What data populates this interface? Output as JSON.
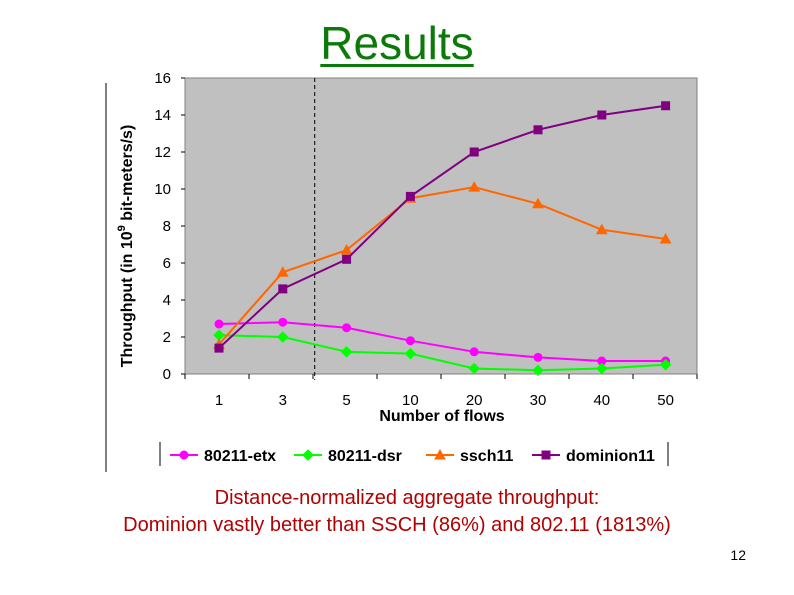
{
  "slide": {
    "title": "Results",
    "caption_line1": "Distance-normalized aggregate throughput:",
    "caption_line2": "Dominion vastly better than SSCH (86%) and 802.11 (1813%)",
    "page_number": "12"
  },
  "chart_data": {
    "type": "line",
    "title": "",
    "xlabel": "Number of flows",
    "ylabel_prefix": "Throughput (in 10",
    "ylabel_exponent": "9",
    "ylabel_suffix": " bit-meters/s)",
    "categories": [
      "1",
      "3",
      "5",
      "10",
      "20",
      "30",
      "40",
      "50"
    ],
    "ylim": [
      0,
      16
    ],
    "yticks": [
      "0",
      "2",
      "4",
      "6",
      "8",
      "10",
      "12",
      "14",
      "16"
    ],
    "grid": false,
    "plot_background": "#c0c0c0",
    "divider_after_category": "3",
    "legend_placement": "bottom",
    "series": [
      {
        "name": "80211-etx",
        "color": "#ff00ff",
        "marker": "circle",
        "values": [
          2.7,
          2.8,
          2.5,
          1.8,
          1.2,
          0.9,
          0.7,
          0.7
        ]
      },
      {
        "name": "80211-dsr",
        "color": "#00ff00",
        "marker": "diamond",
        "values": [
          2.1,
          2.0,
          1.2,
          1.1,
          0.3,
          0.2,
          0.3,
          0.5
        ]
      },
      {
        "name": "ssch11",
        "color": "#ff6600",
        "marker": "triangle",
        "values": [
          1.6,
          5.5,
          6.7,
          9.5,
          10.1,
          9.2,
          7.8,
          7.3
        ]
      },
      {
        "name": "dominion11",
        "color": "#800080",
        "marker": "square",
        "values": [
          1.4,
          4.6,
          6.2,
          9.6,
          12.0,
          13.2,
          14.0,
          14.5
        ]
      }
    ]
  }
}
